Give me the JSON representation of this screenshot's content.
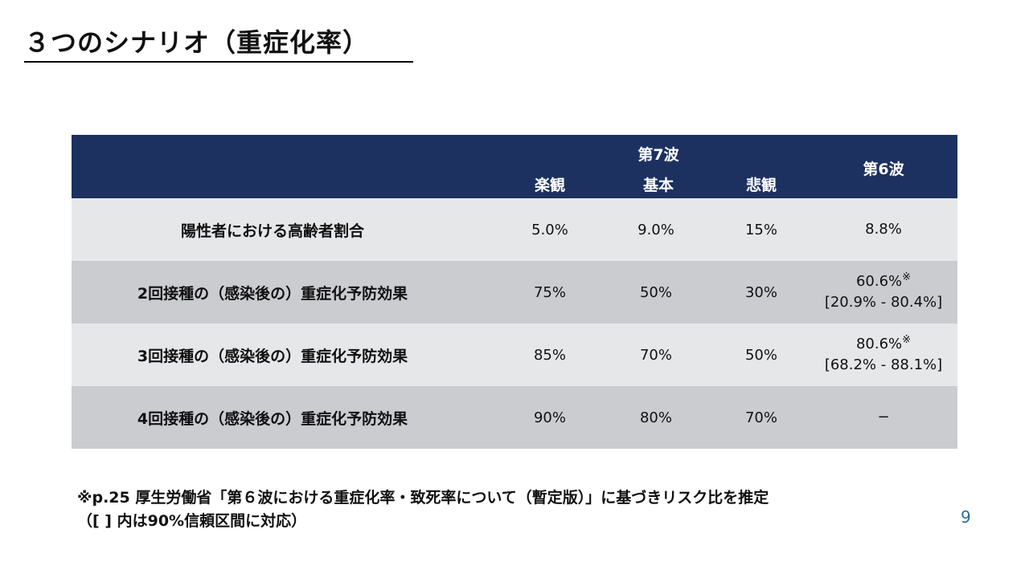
{
  "title": "３つのシナリオ（重症化率）",
  "table": {
    "header": {
      "wave7": "第7波",
      "optimistic": "楽観",
      "base": "基本",
      "pessimistic": "悲観",
      "wave6": "第6波"
    },
    "rows": [
      {
        "label": "陽性者における高齢者割合",
        "opt": "5.0%",
        "base": "9.0%",
        "pess": "15%",
        "w6_main": "8.8%",
        "w6_mark": "",
        "w6_ci": ""
      },
      {
        "label": "2回接種の（感染後の）重症化予防効果",
        "opt": "75%",
        "base": "50%",
        "pess": "30%",
        "w6_main": "60.6%",
        "w6_mark": "※",
        "w6_ci": "[20.9% - 80.4%]"
      },
      {
        "label": "3回接種の（感染後の）重症化予防効果",
        "opt": "85%",
        "base": "70%",
        "pess": "50%",
        "w6_main": "80.6%",
        "w6_mark": "※",
        "w6_ci": "[68.2% - 88.1%]"
      },
      {
        "label": "4回接種の（感染後の）重症化予防効果",
        "opt": "90%",
        "base": "80%",
        "pess": "70%",
        "w6_main": "−",
        "w6_mark": "",
        "w6_ci": ""
      }
    ]
  },
  "note": {
    "line1": "※p.25 厚生労働省「第６波における重症化率・致死率について（暫定版）」に基づきリスク比を推定",
    "line2": "（[ ] 内は90%信頼区間に対応）"
  },
  "page_number": "9"
}
